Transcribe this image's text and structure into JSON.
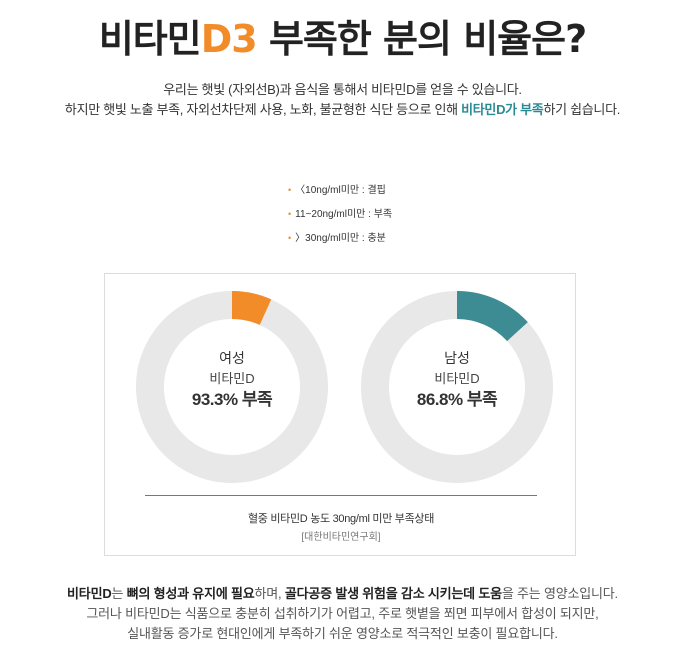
{
  "title": {
    "part1": "비타민",
    "accent": "D3",
    "part2": " 부족한 분의 비율은?"
  },
  "intro": {
    "line1": "우리는 햇빛 (자외선B)과 음식을 통해서 비타민D를 얻을 수 있습니다.",
    "line2_prefix": "하지만 햇빛 노출 부족, 자외선차단제 사용, 노화, 불균형한 식단 등으로 인해 ",
    "line2_highlight": "비타민D가 부족",
    "line2_suffix": "하기 쉽습니다."
  },
  "legend": [
    {
      "bullet": "•",
      "text": "〈10ng/ml미만 : 결핍"
    },
    {
      "bullet": "•",
      "text": "11~20ng/ml미만 : 부족"
    },
    {
      "bullet": "•",
      "text": "〉30ng/ml미만 : 충분"
    }
  ],
  "chart_data": {
    "type": "pie",
    "charts": [
      {
        "group": "여성",
        "subject": "비타민D",
        "value_label": "93.3% 부족",
        "deficient_percent": 93.3,
        "highlight_percent": 6.7,
        "highlight_color": "#f28c28"
      },
      {
        "group": "남성",
        "subject": "비타민D",
        "value_label": "86.8% 부족",
        "deficient_percent": 86.8,
        "highlight_percent": 13.2,
        "highlight_color": "#3d8b93"
      }
    ],
    "ring_color": "#e8e8e8",
    "note": "혈중 비타민D 농도 30ng/ml 미만 부족상태",
    "source": "[대한비타민연구회]"
  },
  "bottom": {
    "line1_b1": "비타민D",
    "line1_t1": "는 ",
    "line1_b2": "뼈의 형성과 유지에 필요",
    "line1_t2": "하며, ",
    "line1_b3": "골다공증 발생 위험을 감소 시키는데 도움",
    "line1_t3": "을 주는 영양소입니다.",
    "line2": "그러나 비타민D는 식품으로 충분히 섭취하기가 어렵고, 주로 햇볕을 쬐면 피부에서 합성이 되지만,",
    "line3": "실내활동 증가로 현대인에게 부족하기 쉬운 영양소로 적극적인 보충이 필요합니다."
  }
}
